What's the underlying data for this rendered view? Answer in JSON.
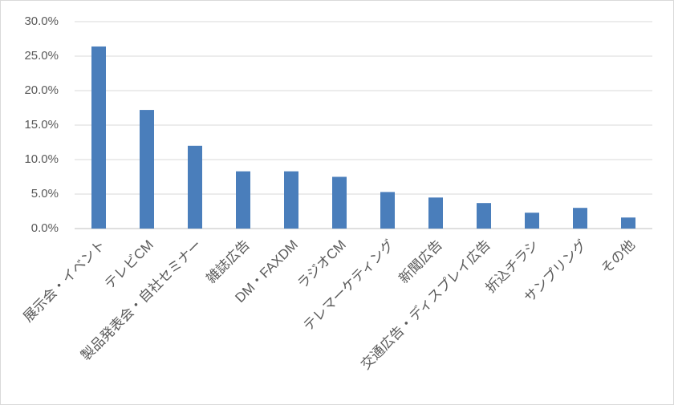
{
  "chart_data": {
    "type": "bar",
    "categories": [
      "展示会・イベント",
      "テレビCM",
      "製品発表会・自社セミナー",
      "雑誌広告",
      "DM・FAXDM",
      "ラジオCM",
      "テレマーケティング",
      "新聞広告",
      "交通広告・ディスプレイ広告",
      "折込チラシ",
      "サンプリング",
      "その他"
    ],
    "values": [
      26.4,
      17.2,
      12.0,
      8.3,
      8.3,
      7.5,
      5.3,
      4.5,
      3.7,
      2.3,
      3.0,
      1.6
    ],
    "color": "#4a7ebb",
    "ylim": [
      0,
      30
    ],
    "yticks": [
      {
        "value": 0,
        "label": "0.0%"
      },
      {
        "value": 5,
        "label": "5.0%"
      },
      {
        "value": 10,
        "label": "10.0%"
      },
      {
        "value": 15,
        "label": "15.0%"
      },
      {
        "value": 20,
        "label": "20.0%"
      },
      {
        "value": 25,
        "label": "25.0%"
      },
      {
        "value": 30,
        "label": "30.0%"
      }
    ],
    "grid": true
  }
}
